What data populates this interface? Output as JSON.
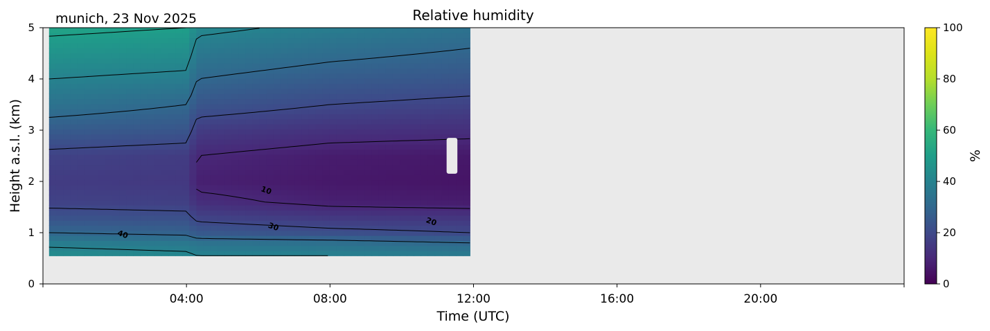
{
  "chart_data": {
    "type": "heatmap",
    "title": "Relative humidity",
    "subtitle": "munich, 23 Nov 2025",
    "xlabel": "Time (UTC)",
    "ylabel": "Height a.s.l. (km)",
    "xlim_hours": [
      0,
      24
    ],
    "ylim": [
      0,
      5
    ],
    "x_ticks": [
      {
        "hour": 4,
        "label": "04:00"
      },
      {
        "hour": 8,
        "label": "08:00"
      },
      {
        "hour": 12,
        "label": "12:00"
      },
      {
        "hour": 16,
        "label": "16:00"
      },
      {
        "hour": 20,
        "label": "20:00"
      }
    ],
    "y_ticks": [
      "0",
      "1",
      "2",
      "3",
      "4",
      "5"
    ],
    "data_coverage": {
      "start_hour": 0.17,
      "end_hour": 11.9,
      "min_height_km": 0.55,
      "max_height_km": 5.0
    },
    "missing_data_gaps": [
      {
        "start_hour": 11.25,
        "end_hour": 11.55,
        "bottom_km": 2.15,
        "top_km": 2.85
      }
    ],
    "contour_levels": [
      10,
      20,
      30,
      40,
      50,
      60
    ],
    "contour_labels": [
      {
        "text": "10",
        "hour": 6.2,
        "height_km": 1.78
      },
      {
        "text": "30",
        "hour": 6.4,
        "height_km": 1.07
      },
      {
        "text": "20",
        "hour": 10.8,
        "height_km": 1.17
      },
      {
        "text": "40",
        "hour": 2.2,
        "height_km": 0.92
      }
    ],
    "profile_hours": [
      0.17,
      4.0,
      4.3,
      8.0,
      11.9
    ],
    "profile_heights_km": [
      0.55,
      0.8,
      1.0,
      1.3,
      1.6,
      2.0,
      2.5,
      3.0,
      3.5,
      4.0,
      4.5,
      5.0
    ],
    "rh_profiles_percent": [
      [
        44,
        38,
        30,
        23,
        18,
        16,
        18,
        26,
        34,
        40,
        46,
        52
      ],
      [
        42,
        36,
        28,
        22,
        17,
        15,
        16,
        24,
        30,
        38,
        44,
        50
      ],
      [
        40,
        34,
        25,
        18,
        12,
        8,
        10,
        16,
        24,
        30,
        36,
        42
      ],
      [
        40,
        33,
        22,
        15,
        8,
        6,
        7,
        13,
        20,
        26,
        32,
        38
      ],
      [
        38,
        30,
        20,
        14,
        7,
        5,
        6,
        12,
        18,
        24,
        29,
        34
      ]
    ],
    "grid": false,
    "background_color": "#eaeaea",
    "colormap": "viridis",
    "colorbar": {
      "label": "%",
      "min": 0,
      "max": 100,
      "ticks": [
        "0",
        "20",
        "40",
        "60",
        "80",
        "100"
      ]
    }
  }
}
